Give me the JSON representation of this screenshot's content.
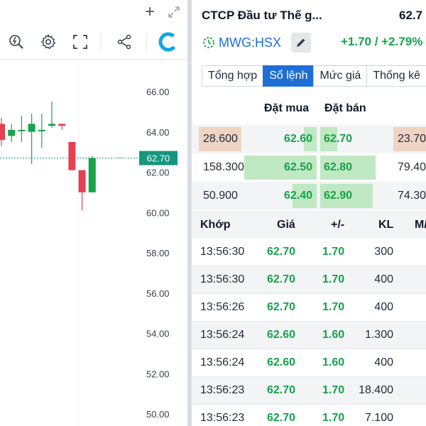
{
  "left": {
    "price_axis": [
      "66.00",
      "64.00",
      "62.00",
      "60.00",
      "58.00",
      "56.00",
      "54.00",
      "52.00",
      "50.00"
    ],
    "current_price_label": "62.70",
    "colors": {
      "up": "#16a34a",
      "down": "#e5404f",
      "price_tag": "#15967f"
    },
    "icons": {
      "add": "plus-icon",
      "expand": "expand-arrows-icon",
      "indicator": "lightning-search-icon",
      "settings": "gear-icon",
      "fullscreen": "fullscreen-icon",
      "share": "share-icon",
      "brand": "brand-logo-icon"
    }
  },
  "chart_data": {
    "type": "candlestick",
    "ylim": [
      49.5,
      67.2
    ],
    "last_price": 62.7,
    "candles": [
      {
        "o": 64.4,
        "h": 64.7,
        "l": 63.3,
        "c": 63.6
      },
      {
        "o": 63.8,
        "h": 64.4,
        "l": 63.5,
        "c": 64.1
      },
      {
        "o": 64.1,
        "h": 64.8,
        "l": 63.5,
        "c": 64.1
      },
      {
        "o": 64.0,
        "h": 64.9,
        "l": 62.4,
        "c": 64.4
      },
      {
        "o": 64.1,
        "h": 64.9,
        "l": 63.2,
        "c": 64.1
      },
      {
        "o": 64.3,
        "h": 65.5,
        "l": 64.2,
        "c": 64.4
      },
      {
        "o": 64.4,
        "h": 64.4,
        "l": 64.1,
        "c": 64.3
      },
      {
        "o": 63.5,
        "h": 63.5,
        "l": 62.1,
        "c": 62.1
      },
      {
        "o": 62.1,
        "h": 62.1,
        "l": 60.1,
        "c": 61.0
      },
      {
        "o": 61.0,
        "h": 62.8,
        "l": 61.0,
        "c": 62.7
      }
    ]
  },
  "right": {
    "stock_name": "CTCP Đầu tư Thế g...",
    "stock_price": "62.7",
    "ticker": "MWG:HSX",
    "change": "+1.70 / +2.79%",
    "tabs": [
      "Tổng hợp",
      "Sổ lệnh",
      "Mức giá",
      "Thống kê"
    ],
    "active_tab": 1,
    "orderbook_headers": {
      "bid": "Đặt mua",
      "ask": "Đặt bán"
    },
    "orderbook": [
      {
        "bid_vol": "28.600",
        "bid_price": "62.60",
        "ask_price": "62.70",
        "ask_vol": "23.70"
      },
      {
        "bid_vol": "158.300",
        "bid_price": "62.50",
        "ask_price": "62.80",
        "ask_vol": "79.40"
      },
      {
        "bid_vol": "50.900",
        "bid_price": "62.40",
        "ask_price": "62.90",
        "ask_vol": "74.30"
      }
    ],
    "trades_headers": {
      "time": "Khớp",
      "price": "Giá",
      "change": "+/-",
      "volume": "KL",
      "type": "M/"
    },
    "trades": [
      {
        "time": "13:56:30",
        "price": "62.70",
        "change": "1.70",
        "volume": "300"
      },
      {
        "time": "13:56:30",
        "price": "62.70",
        "change": "1.70",
        "volume": "400"
      },
      {
        "time": "13:56:26",
        "price": "62.70",
        "change": "1.70",
        "volume": "400"
      },
      {
        "time": "13:56:24",
        "price": "62.60",
        "change": "1.60",
        "volume": "1.300"
      },
      {
        "time": "13:56:24",
        "price": "62.60",
        "change": "1.60",
        "volume": "400"
      },
      {
        "time": "13:56:23",
        "price": "62.70",
        "change": "1.70",
        "volume": "18.400"
      },
      {
        "time": "13:56:23",
        "price": "62.70",
        "change": "1.70",
        "volume": "7.100"
      }
    ],
    "icons": {
      "live": "live-clock-icon",
      "edit": "pencil-icon"
    },
    "colors": {
      "up": "#16a34a",
      "accent": "#1d6fd6",
      "bar": "#bfe8c3",
      "highlight": "#efd4c3"
    }
  }
}
